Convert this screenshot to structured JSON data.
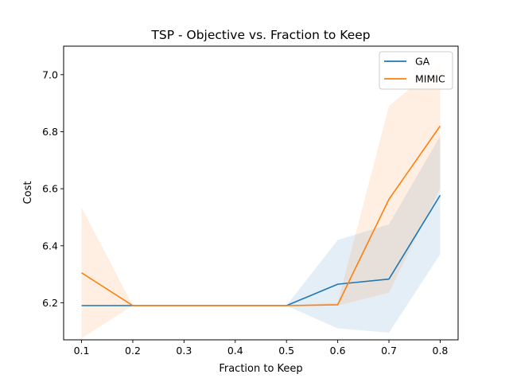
{
  "chart_data": {
    "type": "line",
    "title": "TSP - Objective vs. Fraction to Keep",
    "xlabel": "Fraction to Keep",
    "ylabel": "Cost",
    "x": [
      0.1,
      0.2,
      0.3,
      0.4,
      0.5,
      0.6,
      0.7,
      0.8
    ],
    "xlim": [
      0.065,
      0.835
    ],
    "ylim": [
      6.07,
      7.1
    ],
    "xticks": [
      "0.1",
      "0.2",
      "0.3",
      "0.4",
      "0.5",
      "0.6",
      "0.7",
      "0.8"
    ],
    "yticks": [
      "6.2",
      "6.4",
      "6.6",
      "6.8",
      "7.0"
    ],
    "grid": false,
    "legend_position": "top-right",
    "series": [
      {
        "name": "GA",
        "color": "#1f77b4",
        "values": [
          6.19,
          6.19,
          6.19,
          6.19,
          6.19,
          6.265,
          6.283,
          6.577
        ],
        "band_lower": [
          6.19,
          6.19,
          6.19,
          6.19,
          6.19,
          6.11,
          6.095,
          6.37
        ],
        "band_upper": [
          6.19,
          6.19,
          6.19,
          6.19,
          6.19,
          6.42,
          6.475,
          6.785
        ]
      },
      {
        "name": "MIMIC",
        "color": "#ff7f0e",
        "values": [
          6.305,
          6.19,
          6.19,
          6.19,
          6.19,
          6.193,
          6.563,
          6.82
        ],
        "band_lower": [
          6.075,
          6.19,
          6.19,
          6.19,
          6.19,
          6.19,
          6.235,
          6.6
        ],
        "band_upper": [
          6.535,
          6.19,
          6.19,
          6.19,
          6.19,
          6.2,
          6.89,
          7.04
        ]
      }
    ]
  }
}
